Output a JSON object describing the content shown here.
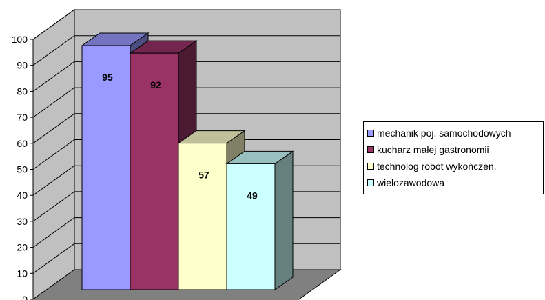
{
  "chart_data": {
    "type": "bar",
    "title": "",
    "xlabel": "",
    "ylabel": "",
    "ylim": [
      0,
      100
    ],
    "yticks": [
      0,
      10,
      20,
      30,
      40,
      50,
      60,
      70,
      80,
      90,
      100
    ],
    "grid": true,
    "legend_position": "right",
    "three_d": true,
    "series": [
      {
        "name": "mechanik poj. samochodowych",
        "value": 95,
        "color": "#9999ff"
      },
      {
        "name": "kucharz małej gastronomii",
        "value": 92,
        "color": "#993366"
      },
      {
        "name": "technolog robót wykończen.",
        "value": 57,
        "color": "#ffffcc"
      },
      {
        "name": "wielozawodowa",
        "value": 49,
        "color": "#ccffff"
      }
    ],
    "wall_color": "#c0c0c0",
    "floor_color": "#808080"
  }
}
